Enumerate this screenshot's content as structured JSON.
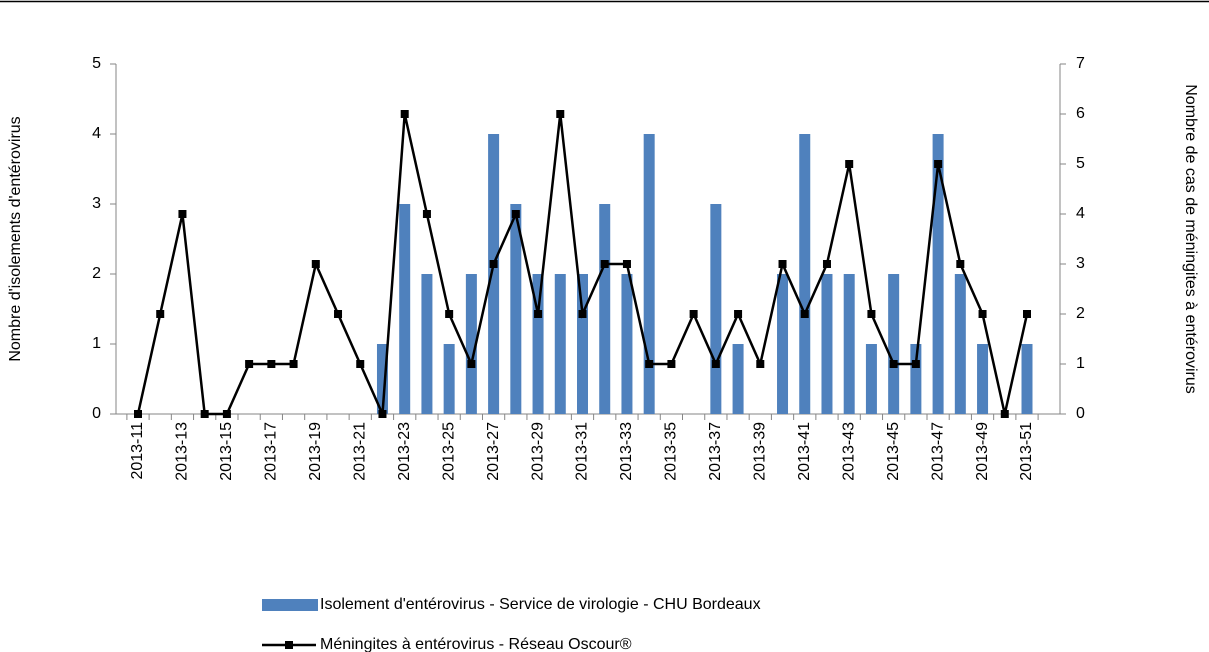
{
  "chart_data": {
    "type": "bar",
    "y_label": "Nombre d'isolements d'entérovirus",
    "y2_label": "Nombre de cas de méningites à entérovirus",
    "categories": [
      "2013-11",
      null,
      "2013-13",
      null,
      "2013-15",
      null,
      "2013-17",
      null,
      "2013-19",
      null,
      "2013-21",
      null,
      "2013-23",
      null,
      "2013-25",
      null,
      "2013-27",
      null,
      "2013-29",
      null,
      "2013-31",
      null,
      "2013-33",
      null,
      "2013-35",
      null,
      "2013-37",
      null,
      "2013-39",
      null,
      "2013-41",
      null,
      "2013-43",
      null,
      "2013-45",
      null,
      "2013-47",
      null,
      "2013-49",
      null,
      "2013-51"
    ],
    "series": [
      {
        "name": "Isolement d'entérovirus - Service de virologie - CHU Bordeaux",
        "type": "bar",
        "color": "#4f81bd",
        "values": [
          0,
          0,
          0,
          0,
          0,
          0,
          0,
          0,
          0,
          0,
          0,
          1,
          3,
          2,
          1,
          2,
          4,
          3,
          2,
          2,
          2,
          3,
          2,
          4,
          0,
          0,
          3,
          1,
          0,
          2,
          4,
          2,
          2,
          1,
          2,
          1,
          4,
          2,
          1,
          0,
          1
        ]
      },
      {
        "name": "Méningites à entérovirus - Réseau Oscour®",
        "type": "line",
        "axis": "y2",
        "color": "#000000",
        "values": [
          0,
          2,
          4,
          0,
          0,
          1,
          1,
          1,
          3,
          2,
          1,
          0,
          6,
          4,
          2,
          1,
          3,
          4,
          2,
          6,
          2,
          3,
          3,
          1,
          1,
          2,
          1,
          2,
          1,
          3,
          2,
          3,
          5,
          2,
          1,
          1,
          5,
          3,
          2,
          0,
          2
        ]
      }
    ],
    "ylim": [
      0,
      5
    ],
    "yticks": [
      0,
      1,
      2,
      3,
      4,
      5
    ],
    "y2lim": [
      0,
      7
    ],
    "y2ticks": [
      0,
      1,
      2,
      3,
      4,
      5,
      6,
      7
    ]
  }
}
